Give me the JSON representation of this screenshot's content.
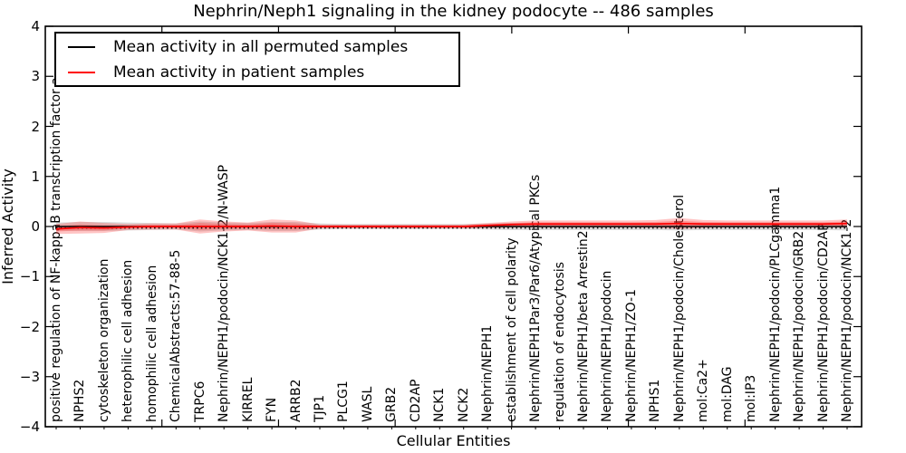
{
  "title": "Nephrin/Neph1 signaling in the kidney podocyte -- 486 samples",
  "axes": {
    "xlabel": "Cellular Entities",
    "ylabel": "Inferred Activity",
    "yticks": [
      "4",
      "3",
      "2",
      "1",
      "0",
      "−1",
      "−2",
      "−3",
      "−4"
    ]
  },
  "chart_data": {
    "type": "line",
    "title": "Nephrin/Neph1 signaling in the kidney podocyte -- 486 samples",
    "xlabel": "Cellular Entities",
    "ylabel": "Inferred Activity",
    "ylim": [
      -4,
      4
    ],
    "grid": false,
    "legend_position": "upper left",
    "categories": [
      "positive regulation of NF-kappaB transcription factor a",
      "NPHS2",
      "cytoskeleton organization",
      "heterophilic cell adhesion",
      "homophilic cell adhesion",
      "ChemicalAbstracts:57-88-5",
      "TRPC6",
      "Nephrin/NEPH1/podocin/NCK1-2/N-WASP",
      "KIRREL",
      "FYN",
      "ARRB2",
      "TJP1",
      "PLCG1",
      "WASL",
      "GRB2",
      "CD2AP",
      "NCK1",
      "NCK2",
      "Nephrin/NEPH1",
      "establishment of cell polarity",
      "Nephrin/NEPH1Par3/Par6/Atypical PKCs",
      "regulation of endocytosis",
      "Nephrin/NEPH1/beta Arrestin2",
      "Nephrin/NEPH1/podocin",
      "Nephrin/NEPH1/ZO-1",
      "NPHS1",
      "Nephrin/NEPH1/podocin/Cholesterol",
      "mol:Ca2+",
      "mol:DAG",
      "mol:IP3",
      "Nephrin/NEPH1/podocin/PLCgamma1",
      "Nephrin/NEPH1/podocin/GRB2",
      "Nephrin/NEPH1/podocin/CD2AP",
      "Nephrin/NEPH1/podocin/NCK1-2"
    ],
    "series": [
      {
        "name": "Mean activity in all permuted samples",
        "color": "#000000",
        "band_color": "#888888",
        "values": [
          0,
          0,
          0,
          0,
          0,
          0,
          0,
          0,
          0,
          0,
          0,
          0,
          0,
          0,
          0,
          0,
          0,
          0,
          0,
          0,
          0,
          0,
          0,
          0,
          0,
          0,
          0,
          0,
          0,
          0,
          0,
          0,
          0,
          0
        ],
        "spread": [
          0.08,
          0.09,
          0.09,
          0.08,
          0.07,
          0.06,
          0.1,
          0.08,
          0.07,
          0.09,
          0.09,
          0.06,
          0.05,
          0.05,
          0.05,
          0.05,
          0.05,
          0.05,
          0.06,
          0.07,
          0.07,
          0.07,
          0.07,
          0.07,
          0.07,
          0.07,
          0.08,
          0.07,
          0.07,
          0.07,
          0.07,
          0.07,
          0.07,
          0.08
        ]
      },
      {
        "name": "Mean activity in patient samples",
        "color": "#ff0000",
        "band_color": "#ff2a2a",
        "values": [
          -0.05,
          -0.02,
          -0.03,
          -0.01,
          0,
          0,
          0,
          0,
          0,
          0.01,
          0,
          0,
          0,
          0,
          0,
          0,
          0,
          0,
          0.02,
          0.04,
          0.05,
          0.05,
          0.05,
          0.05,
          0.05,
          0.05,
          0.06,
          0.05,
          0.05,
          0.05,
          0.05,
          0.05,
          0.05,
          0.06
        ],
        "spread": [
          0.1,
          0.12,
          0.1,
          0.06,
          0.06,
          0.06,
          0.14,
          0.1,
          0.08,
          0.13,
          0.12,
          0.04,
          0.04,
          0.04,
          0.04,
          0.04,
          0.04,
          0.04,
          0.05,
          0.06,
          0.07,
          0.07,
          0.07,
          0.07,
          0.07,
          0.08,
          0.11,
          0.08,
          0.07,
          0.07,
          0.07,
          0.07,
          0.07,
          0.08
        ]
      }
    ]
  }
}
